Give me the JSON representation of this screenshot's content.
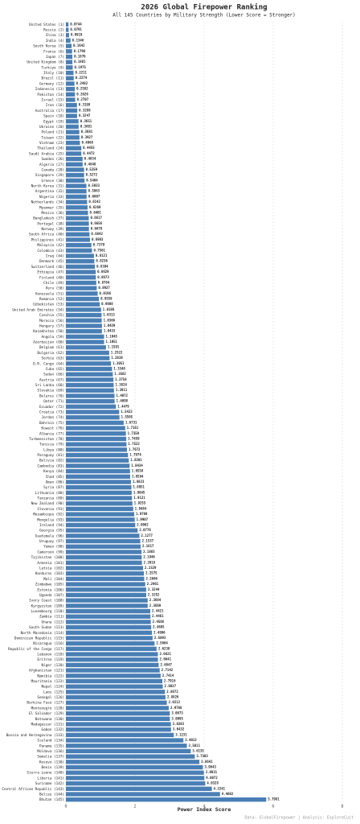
{
  "chart_data": {
    "type": "barh",
    "title": "2026 Global Firepower Ranking",
    "subtitle": "All 145 Countries by Military Strength (Lower Score = Stronger)",
    "x_label": "Power Index Score",
    "source": "Data: GlobalFirepower | Analysis: ExploreCuit",
    "color": "#4a7fb5",
    "grid": true,
    "categories": [
      "United States (1)",
      "Russia (2)",
      "China (3)",
      "India (4)",
      "South Korea (5)",
      "France (6)",
      "Japan (7)",
      "United Kingdom (8)",
      "Turkiye (9)",
      "Italy (10)",
      "Brazil (11)",
      "Germany (12)",
      "Indonesia (13)",
      "Pakistan (14)",
      "Israel (15)",
      "Iran (16)",
      "Australia (17)",
      "Spain (18)",
      "Egypt (19)",
      "Ukraine (20)",
      "Poland (21)",
      "Taiwan (22)",
      "Vietnam (23)",
      "Thailand (24)",
      "Saudi Arabia (25)",
      "Sweden (26)",
      "Algeria (27)",
      "Canada (28)",
      "Singapore (29)",
      "Greece (30)",
      "North Korea (31)",
      "Argentina (32)",
      "Nigeria (33)",
      "Netherlands (34)",
      "Myanmar (35)",
      "Mexico (36)",
      "Bangladesh (37)",
      "Portugal (38)",
      "Norway (39)",
      "South Africa (40)",
      "Philippines (41)",
      "Malaysia (42)",
      "Colombia (43)",
      "Iraq (44)",
      "Denmark (45)",
      "Switzerland (46)",
      "Ethiopia (47)",
      "Finland (48)",
      "Chile (49)",
      "Peru (50)",
      "Venezuela (51)",
      "Romania (52)",
      "Uzbekistan (53)",
      "United Arab Emirates (54)",
      "Czechia (55)",
      "Morocco (56)",
      "Hungary (57)",
      "Kazakhstan (58)",
      "Angola (59)",
      "Azerbaijan (60)",
      "Belgium (61)",
      "Bulgaria (62)",
      "Serbia (63)",
      "D.R. Congo (64)",
      "Cuba (65)",
      "Sudan (66)",
      "Austria (67)",
      "Sri Lanka (68)",
      "Slovakia (69)",
      "Belarus (70)",
      "Qatar (71)",
      "Ecuador (72)",
      "Croatia (73)",
      "Jordan (74)",
      "Bahrain (75)",
      "Kuwait (76)",
      "Albania (77)",
      "Turkmenistan (78)",
      "Tunisia (79)",
      "Libya (80)",
      "Paraguay (81)",
      "Bolivia (82)",
      "Cambodia (83)",
      "Kenya (84)",
      "Chad (85)",
      "Oman (86)",
      "Syria (87)",
      "Lithuania (88)",
      "Tanzania (89)",
      "New Zealand (90)",
      "Slovenia (91)",
      "Mozambique (92)",
      "Mongolia (93)",
      "Ireland (94)",
      "Georgia (95)",
      "Guatemala (96)",
      "Uruguay (97)",
      "Yemen (98)",
      "Cameroon (99)",
      "Tajikistan (100)",
      "Armenia (101)",
      "Latvia (102)",
      "Honduras (103)",
      "Mali (104)",
      "Zimbabwe (105)",
      "Estonia (106)",
      "Uganda (107)",
      "Ivory Coast (108)",
      "Kyrgyzstan (109)",
      "Luxembourg (110)",
      "Zambia (111)",
      "Ghana (112)",
      "South Sudan (113)",
      "North Macedonia (114)",
      "Dominican Republic (115)",
      "Nicaragua (116)",
      "Republic of the Congo (117)",
      "Lebanon (118)",
      "Eritrea (119)",
      "Niger (120)",
      "Afghanistan (121)",
      "Namibia (122)",
      "Mauritania (123)",
      "Nepal (124)",
      "Laos (125)",
      "Senegal (126)",
      "Burkina Faso (127)",
      "Montenegro (128)",
      "El Salvador (129)",
      "Botswana (130)",
      "Madagascar (131)",
      "Gabon (132)",
      "Bosnia and Herzegovina (133)",
      "Iceland (134)",
      "Panama (135)",
      "Moldova (136)",
      "Somalia (137)",
      "Kosovo (138)",
      "Benin (139)",
      "Sierra Leone (140)",
      "Liberia (141)",
      "Suriname (142)",
      "Central African Republic (143)",
      "Belize (144)",
      "Bhutan (145)"
    ],
    "values": [
      0.0744,
      0.0791,
      0.0919,
      0.1346,
      0.1642,
      0.1798,
      0.1876,
      0.1881,
      0.1975,
      0.2211,
      0.2274,
      0.2482,
      0.2582,
      0.2626,
      0.2707,
      0.3199,
      0.3298,
      0.3247,
      0.3651,
      0.3691,
      0.3881,
      0.3927,
      0.4068,
      0.4455,
      0.4472,
      0.4834,
      0.4848,
      0.5259,
      0.5272,
      0.5404,
      0.5933,
      0.5963,
      0.6007,
      0.6142,
      0.6269,
      0.6401,
      0.6617,
      0.6656,
      0.6679,
      0.6842,
      0.6983,
      0.7379,
      0.7561,
      0.8121,
      0.8236,
      0.8394,
      0.8629,
      0.8673,
      0.8784,
      0.8927,
      0.9196,
      0.9559,
      0.9808,
      1.0186,
      1.0313,
      1.0366,
      1.0429,
      1.0433,
      1.1045,
      1.1051,
      1.1591,
      1.2522,
      1.2638,
      1.3051,
      1.3348,
      1.3582,
      1.3758,
      1.3824,
      1.3911,
      1.4072,
      1.4098,
      1.4479,
      1.5422,
      1.5505,
      1.6731,
      1.7161,
      1.7359,
      1.7459,
      1.7522,
      1.7672,
      1.7974,
      1.8201,
      1.8434,
      1.8558,
      1.8594,
      1.8823,
      1.8951,
      1.9045,
      1.9121,
      1.9255,
      1.9484,
      1.9769,
      1.9907,
      2.0062,
      2.0776,
      2.1277,
      2.1537,
      2.1617,
      2.1883,
      2.1946,
      2.2018,
      2.2329,
      2.2575,
      2.2666,
      2.2961,
      2.3244,
      2.3252,
      2.3664,
      2.3669,
      2.4421,
      2.4461,
      2.4566,
      2.4685,
      2.4906,
      2.5093,
      2.5664,
      2.6238,
      2.6621,
      2.6641,
      2.6847,
      2.7142,
      2.7414,
      2.7916,
      2.8037,
      2.8672,
      2.8826,
      2.9213,
      2.9768,
      3.0073,
      3.0095,
      3.0383,
      3.0432,
      3.1231,
      3.4013,
      3.5011,
      3.6135,
      3.7303,
      3.8641,
      3.9643,
      3.9931,
      4.0072,
      4.0328,
      4.2241,
      4.4602,
      5.7981
    ],
    "xlim": [
      0,
      8
    ],
    "xticks": [
      0,
      2,
      4,
      6,
      8
    ]
  }
}
